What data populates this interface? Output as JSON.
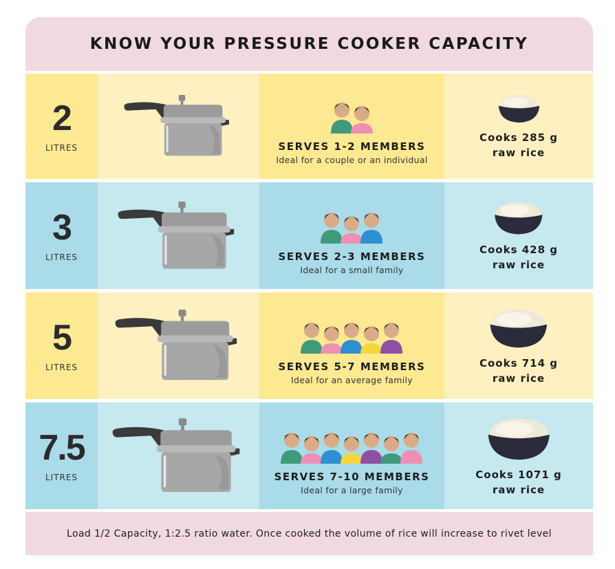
{
  "title": "KNOW YOUR PRESSURE COOKER CAPACITY",
  "rows": [
    {
      "capacity": "2",
      "unit": "LITRES",
      "serves": "SERVES 1-2 MEMBERS",
      "ideal": "Ideal for a couple or an individual",
      "cooks": "Cooks 285 g",
      "rice": "raw rice",
      "people": 2,
      "theme": "yellow"
    },
    {
      "capacity": "3",
      "unit": "LITRES",
      "serves": "SERVES 2-3 MEMBERS",
      "ideal": "Ideal for a small family",
      "cooks": "Cooks 428 g",
      "rice": "raw rice",
      "people": 3,
      "theme": "blue"
    },
    {
      "capacity": "5",
      "unit": "LITRES",
      "serves": "SERVES 5-7 MEMBERS",
      "ideal": "Ideal for an average family",
      "cooks": "Cooks 714 g",
      "rice": "raw rice",
      "people": 5,
      "theme": "yellow"
    },
    {
      "capacity": "7.5",
      "unit": "LITRES",
      "serves": "SERVES 7-10 MEMBERS",
      "ideal": "Ideal for a large family",
      "cooks": "Cooks 1071 g",
      "rice": "raw rice",
      "people": 7,
      "theme": "blue"
    }
  ],
  "footer": "Load 1/2 Capacity, 1:2.5 ratio water. Once cooked the volume of rice will increase to rivet level",
  "colors": {
    "pink": "#f0d9df",
    "yellow": "#fde991",
    "yellow_light": "#fef0c0",
    "blue": "#aadbe9",
    "blue_light": "#c6e8ef"
  },
  "icons": [
    "pressure-cooker-icon",
    "family-members-icon",
    "rice-bowl-icon"
  ]
}
